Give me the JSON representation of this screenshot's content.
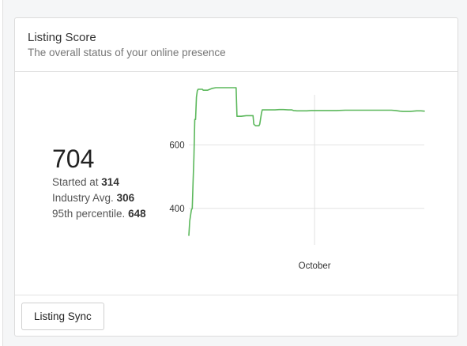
{
  "card": {
    "title": "Listing Score",
    "subtitle": "The overall status of your online presence"
  },
  "score": {
    "value": "704",
    "started_label": "Started at ",
    "started_value": "314",
    "industry_label": "Industry Avg. ",
    "industry_value": "306",
    "percentile_label": "95th percentile. ",
    "percentile_value": "648"
  },
  "chart_data": {
    "type": "line",
    "title": "",
    "xlabel": "",
    "ylabel": "",
    "x_tick_labels": [
      "October"
    ],
    "y_ticks": [
      400,
      600
    ],
    "ylim": [
      310,
      770
    ],
    "grid": true,
    "series": [
      {
        "color": "#5cb85c",
        "points": [
          [
            0,
            315
          ],
          [
            1,
            360
          ],
          [
            3,
            395
          ],
          [
            4,
            400
          ],
          [
            5,
            480
          ],
          [
            6,
            560
          ],
          [
            7,
            680
          ],
          [
            8,
            680
          ],
          [
            9,
            750
          ],
          [
            10,
            770
          ],
          [
            11,
            775
          ],
          [
            16,
            775
          ],
          [
            17,
            772
          ],
          [
            22,
            772
          ],
          [
            25,
            775
          ],
          [
            28,
            778
          ],
          [
            32,
            780
          ],
          [
            35,
            780
          ],
          [
            40,
            780
          ],
          [
            45,
            780
          ],
          [
            50,
            780
          ],
          [
            55,
            780
          ],
          [
            56,
            780
          ],
          [
            57,
            690
          ],
          [
            62,
            690
          ],
          [
            68,
            692
          ],
          [
            70,
            692
          ],
          [
            74,
            692
          ],
          [
            76,
            692
          ],
          [
            77,
            665
          ],
          [
            79,
            660
          ],
          [
            83,
            660
          ],
          [
            84,
            665
          ],
          [
            86,
            700
          ],
          [
            87,
            710
          ],
          [
            92,
            710
          ],
          [
            97,
            710
          ],
          [
            102,
            710
          ],
          [
            107,
            711
          ],
          [
            112,
            711
          ],
          [
            118,
            710
          ],
          [
            122,
            710
          ],
          [
            124,
            708
          ],
          [
            128,
            707
          ],
          [
            135,
            707
          ],
          [
            140,
            707
          ],
          [
            145,
            708
          ],
          [
            155,
            708
          ],
          [
            165,
            708
          ],
          [
            175,
            708
          ],
          [
            185,
            709
          ],
          [
            195,
            709
          ],
          [
            205,
            709
          ],
          [
            215,
            709
          ],
          [
            225,
            709
          ],
          [
            235,
            709
          ],
          [
            240,
            709
          ],
          [
            245,
            708
          ],
          [
            250,
            706
          ],
          [
            254,
            705
          ],
          [
            258,
            705
          ],
          [
            262,
            705
          ],
          [
            266,
            706
          ],
          [
            270,
            707
          ],
          [
            275,
            707
          ],
          [
            279,
            706
          ]
        ]
      }
    ],
    "x_domain": [
      0,
      279
    ],
    "x_tick_positions": [
      149
    ]
  },
  "footer": {
    "sync_button_label": "Listing Sync"
  }
}
